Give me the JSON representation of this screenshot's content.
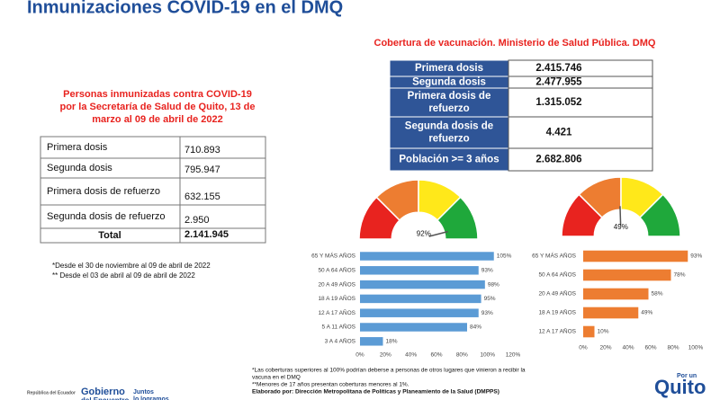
{
  "title": "Inmunizaciones COVID-19 en el DMQ",
  "left": {
    "heading": [
      "Personas inmunizadas contra COVID-19",
      "por la Secretaría de Salud de Quito, 13 de",
      "marzo al 09 de abril de 2022"
    ],
    "rows": [
      [
        "Primera dosis",
        "710.893"
      ],
      [
        "Segunda dosis",
        "795.947"
      ],
      [
        "Primera dosis de refuerzo",
        "632.155"
      ],
      [
        "Segunda dosis de refuerzo",
        "2.950"
      ],
      [
        "Total",
        "2.141.945"
      ]
    ],
    "notes": [
      "*Desde el  30 de noviembre al 09 de abril de 2022",
      "** Desde el  03 de abril al 09 de abril de 2022"
    ]
  },
  "right": {
    "heading": "Cobertura de vacunación. Ministerio de Salud Pública. DMQ",
    "rows": [
      [
        [
          "Primera dosis"
        ],
        "2.415.746"
      ],
      [
        [
          "Segunda dosis"
        ],
        "2.477.955"
      ],
      [
        [
          "Primera dosis de",
          "refuerzo"
        ],
        "1.315.052"
      ],
      [
        [
          "Segunda dosis de",
          "refuerzo"
        ],
        "4.421"
      ],
      [
        [
          "Población >= 3 años"
        ],
        "2.682.806"
      ]
    ]
  },
  "footnotes": [
    "*Las coberturas superiores al 100% podrían deberse a personas de otros lugares que vinieron a recibir la",
    "vacuna en el DMQ",
    "**Menores de 17 años presentan coberturas menores al 1%.",
    "Elaborado por: Dirección Metropolitana de Políticas y Planeamiento de la Salud (DMPPS)"
  ],
  "logos": [
    "República del Ecuador",
    "Gobierno",
    "del Encuentro",
    "Juntos",
    "lo logramos",
    "Por un",
    "Quito"
  ],
  "chart_data": [
    {
      "type": "gauge",
      "values": [
        92
      ],
      "value_labels": [
        "92%"
      ],
      "ylim": [
        0,
        100
      ],
      "colors": [
        "#e8231f",
        "#ed7d31",
        "#ffe81a",
        "#1fa83b"
      ]
    },
    {
      "type": "gauge",
      "values": [
        49
      ],
      "value_labels": [
        "49%"
      ],
      "ylim": [
        0,
        100
      ],
      "colors": [
        "#e8231f",
        "#ed7d31",
        "#ffe81a",
        "#1fa83b"
      ]
    },
    {
      "type": "bar",
      "categories": [
        "65 Y MÁS AÑOS",
        "50 A 64 AÑOS",
        "20 A 49 AÑOS",
        "18 A 19 AÑOS",
        "12 A 17 AÑOS",
        "5 A 11 AÑOS",
        "3 A 4 AÑOS"
      ],
      "values": [
        105,
        93,
        98,
        95,
        93,
        84,
        18
      ],
      "value_labels": [
        "105%",
        "93%",
        "98%",
        "95%",
        "93%",
        "84%",
        "18%"
      ],
      "color": "#5b9bd5",
      "xlim": [
        0,
        120
      ],
      "xticks": [
        {
          "value": 0,
          "label": "0%"
        },
        {
          "value": 20,
          "label": "20%"
        },
        {
          "value": 40,
          "label": "40%"
        },
        {
          "value": 60,
          "label": "60%"
        },
        {
          "value": 80,
          "label": "80%"
        },
        {
          "value": 100,
          "label": "100%"
        },
        {
          "value": 120,
          "label": "120%"
        }
      ]
    },
    {
      "type": "bar",
      "categories": [
        "65 Y MÁS AÑOS",
        "50 A 64 AÑOS",
        "20 A 49 AÑOS",
        "18 A 19 AÑOS",
        "12 A 17 AÑOS"
      ],
      "values": [
        93,
        78,
        58,
        49,
        10
      ],
      "value_labels": [
        "93%",
        "78%",
        "58%",
        "49%",
        "10%"
      ],
      "color": "#ed7d31",
      "xlim": [
        0,
        100
      ],
      "xticks": [
        {
          "value": 0,
          "label": "0%"
        },
        {
          "value": 20,
          "label": "20%"
        },
        {
          "value": 40,
          "label": "40%"
        },
        {
          "value": 60,
          "label": "60%"
        },
        {
          "value": 80,
          "label": "80%"
        },
        {
          "value": 100,
          "label": "100%"
        }
      ]
    }
  ]
}
